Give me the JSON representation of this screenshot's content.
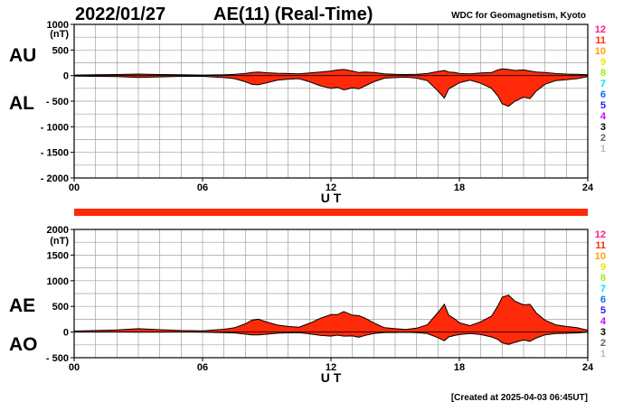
{
  "header": {
    "date": "2022/01/27",
    "title": "AE(11) (Real-Time)",
    "source": "WDC for Geomagnetism, Kyoto"
  },
  "footer": {
    "created": "[Created at 2025-04-03 06:45UT]"
  },
  "colors": {
    "fill": "#ff2a0a",
    "grid": "#a0a0a0",
    "bar": "#ff2a0a"
  },
  "station_legend": [
    {
      "label": "12",
      "color": "#ff1a8c"
    },
    {
      "label": "11",
      "color": "#ff2a0a"
    },
    {
      "label": "10",
      "color": "#ff9f00"
    },
    {
      "label": "9",
      "color": "#f4e300"
    },
    {
      "label": "8",
      "color": "#9ef000"
    },
    {
      "label": "7",
      "color": "#00e0ff"
    },
    {
      "label": "6",
      "color": "#0070ff"
    },
    {
      "label": "5",
      "color": "#2a1aff"
    },
    {
      "label": "4",
      "color": "#d000ff"
    },
    {
      "label": "3",
      "color": "#000000"
    },
    {
      "label": "2",
      "color": "#666666"
    },
    {
      "label": "1",
      "color": "#bbbbbb"
    }
  ],
  "chart_data": [
    {
      "type": "area",
      "panel": "AU/AL",
      "labels": {
        "upper": "AU",
        "lower": "AL"
      },
      "unit": "(nT)",
      "xlabel": "U T",
      "xlim": [
        0,
        24
      ],
      "ylim": [
        -2000,
        1000
      ],
      "xticks": [
        0,
        6,
        12,
        18,
        24
      ],
      "xtick_labels": [
        "00",
        "06",
        "12",
        "18",
        "24"
      ],
      "yticks": [
        1000,
        500,
        0,
        -500,
        -1000,
        -1500,
        -2000
      ],
      "ytick_labels": [
        "1000",
        "500",
        "0",
        "- 500",
        "- 1000",
        "- 1500",
        "- 2000"
      ],
      "grid": true,
      "series": [
        {
          "name": "AU",
          "x": [
            0,
            1,
            2,
            3,
            4,
            5,
            6,
            7,
            7.5,
            8,
            8.3,
            8.6,
            9,
            9.5,
            10,
            10.5,
            11,
            11.5,
            12,
            12.3,
            12.6,
            13,
            13.3,
            13.6,
            14,
            14.5,
            15,
            15.5,
            16,
            16.5,
            17,
            17.3,
            17.5,
            17.8,
            18,
            18.5,
            19,
            19.5,
            19.8,
            20,
            20.3,
            20.6,
            21,
            21.3,
            21.6,
            22,
            22.5,
            23,
            23.5,
            24
          ],
          "values": [
            10,
            15,
            20,
            30,
            20,
            15,
            10,
            15,
            25,
            40,
            60,
            70,
            55,
            45,
            40,
            35,
            50,
            70,
            90,
            110,
            120,
            90,
            60,
            70,
            60,
            35,
            25,
            20,
            25,
            40,
            80,
            100,
            70,
            60,
            40,
            35,
            50,
            60,
            110,
            130,
            120,
            100,
            110,
            90,
            70,
            60,
            40,
            30,
            25,
            15
          ]
        },
        {
          "name": "AL",
          "x": [
            0,
            1,
            2,
            3,
            4,
            5,
            6,
            7,
            7.5,
            8,
            8.3,
            8.6,
            9,
            9.5,
            10,
            10.5,
            11,
            11.5,
            12,
            12.3,
            12.6,
            13,
            13.3,
            13.6,
            14,
            14.5,
            15,
            15.5,
            16,
            16.5,
            17,
            17.3,
            17.5,
            17.8,
            18,
            18.5,
            19,
            19.5,
            19.8,
            20,
            20.3,
            20.6,
            21,
            21.3,
            21.6,
            22,
            22.5,
            23,
            23.5,
            24
          ],
          "values": [
            -10,
            -15,
            -20,
            -35,
            -25,
            -15,
            -15,
            -40,
            -60,
            -120,
            -170,
            -180,
            -140,
            -90,
            -70,
            -60,
            -120,
            -200,
            -250,
            -230,
            -280,
            -240,
            -260,
            -200,
            -120,
            -50,
            -40,
            -30,
            -50,
            -100,
            -300,
            -440,
            -260,
            -190,
            -140,
            -90,
            -150,
            -250,
            -400,
            -550,
            -600,
            -500,
            -420,
            -450,
            -300,
            -170,
            -100,
            -80,
            -60,
            -20
          ]
        }
      ]
    },
    {
      "type": "area",
      "panel": "AE/AO",
      "labels": {
        "upper": "AE",
        "lower": "AO"
      },
      "unit": "(nT)",
      "xlabel": "U T",
      "xlim": [
        0,
        24
      ],
      "ylim": [
        -500,
        2000
      ],
      "xticks": [
        0,
        6,
        12,
        18,
        24
      ],
      "xtick_labels": [
        "00",
        "06",
        "12",
        "18",
        "24"
      ],
      "yticks": [
        2000,
        1500,
        1000,
        500,
        0,
        -500
      ],
      "ytick_labels": [
        "2000",
        "1500",
        "1000",
        "500",
        "0",
        "- 500"
      ],
      "grid": true,
      "series": [
        {
          "name": "AE",
          "x": [
            0,
            1,
            2,
            3,
            4,
            5,
            6,
            7,
            7.5,
            8,
            8.3,
            8.6,
            9,
            9.5,
            10,
            10.5,
            11,
            11.5,
            12,
            12.3,
            12.6,
            13,
            13.3,
            13.6,
            14,
            14.5,
            15,
            15.5,
            16,
            16.5,
            17,
            17.3,
            17.5,
            17.8,
            18,
            18.5,
            19,
            19.5,
            19.8,
            20,
            20.3,
            20.6,
            21,
            21.3,
            21.6,
            22,
            22.5,
            23,
            23.5,
            24
          ],
          "values": [
            20,
            30,
            40,
            65,
            45,
            30,
            25,
            55,
            85,
            160,
            230,
            250,
            195,
            135,
            110,
            95,
            170,
            270,
            340,
            340,
            400,
            330,
            320,
            270,
            180,
            85,
            65,
            50,
            75,
            140,
            380,
            540,
            330,
            250,
            180,
            125,
            200,
            310,
            510,
            680,
            720,
            600,
            530,
            540,
            370,
            230,
            140,
            110,
            85,
            35
          ]
        },
        {
          "name": "AO",
          "x": [
            0,
            1,
            2,
            3,
            4,
            5,
            6,
            7,
            7.5,
            8,
            8.3,
            8.6,
            9,
            9.5,
            10,
            10.5,
            11,
            11.5,
            12,
            12.3,
            12.6,
            13,
            13.3,
            13.6,
            14,
            14.5,
            15,
            15.5,
            16,
            16.5,
            17,
            17.3,
            17.5,
            17.8,
            18,
            18.5,
            19,
            19.5,
            19.8,
            20,
            20.3,
            20.6,
            21,
            21.3,
            21.6,
            22,
            22.5,
            23,
            23.5,
            24
          ],
          "values": [
            0,
            0,
            0,
            -3,
            -3,
            0,
            -3,
            -13,
            -18,
            -40,
            -55,
            -55,
            -43,
            -23,
            -15,
            -13,
            -35,
            -65,
            -80,
            -60,
            -80,
            -75,
            -100,
            -65,
            -30,
            -8,
            -8,
            -5,
            -13,
            -30,
            -110,
            -170,
            -95,
            -65,
            -50,
            -28,
            -50,
            -95,
            -145,
            -210,
            -240,
            -200,
            -155,
            -180,
            -115,
            -55,
            -30,
            -25,
            -18,
            -3
          ]
        }
      ]
    }
  ]
}
